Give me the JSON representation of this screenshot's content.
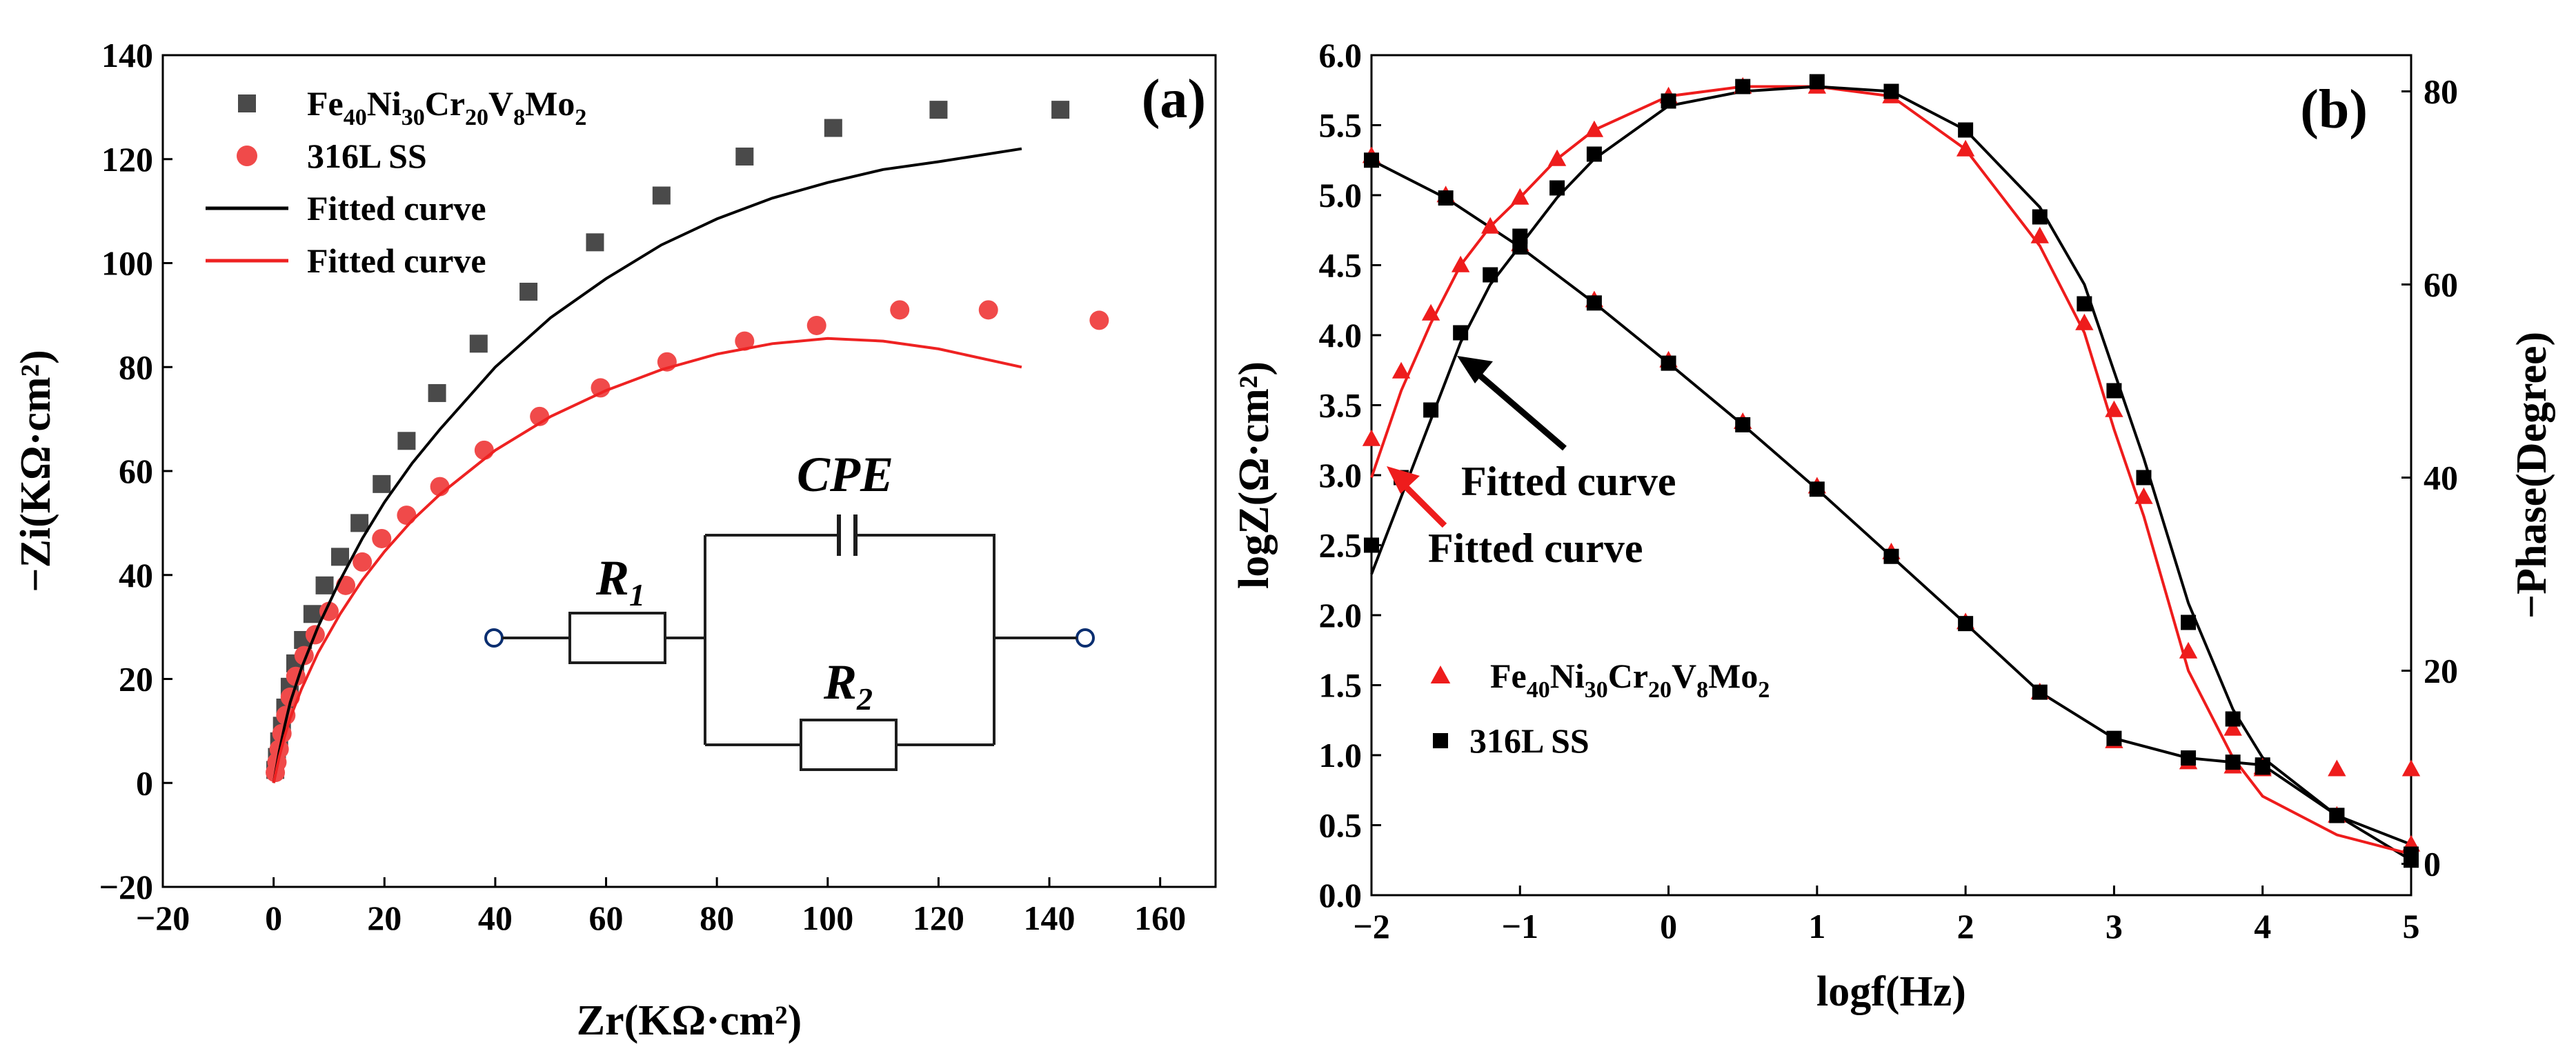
{
  "chart_data": [
    {
      "type": "scatter",
      "panel_label": "(a)",
      "xlabel": "Zr(KΩ·cm²)",
      "ylabel": "−Zi(KΩ·cm²)",
      "xlim": [
        -20,
        170
      ],
      "ylim": [
        -20,
        140
      ],
      "xticks": [
        "−20",
        "0",
        "20",
        "40",
        "60",
        "80",
        "100",
        "120",
        "140",
        "160"
      ],
      "yticks": [
        "−20",
        "0",
        "20",
        "40",
        "60",
        "80",
        "100",
        "120",
        "140"
      ],
      "legend_position": "top-left",
      "legend": [
        {
          "label": "Fe",
          "sub": [
            "40",
            "Ni",
            "30",
            "Cr",
            "20",
            "V",
            "8",
            "Mo",
            "2"
          ],
          "marker": "square",
          "color": "#4a4a4a"
        },
        {
          "label": "316L SS",
          "marker": "circle",
          "color": "#f04a4a"
        },
        {
          "label": "Fitted curve",
          "marker": "line",
          "color": "#000000"
        },
        {
          "label": "Fitted curve",
          "marker": "line",
          "color": "#ee2222"
        }
      ],
      "series": [
        {
          "name": "Fe40Ni30Cr20V8Mo2",
          "marker": "square",
          "color": "#4a4a4a",
          "x": [
            0.3,
            0.6,
            1.0,
            1.5,
            2.1,
            2.9,
            3.9,
            5.3,
            7.0,
            9.2,
            12,
            15.5,
            19.5,
            24,
            29.5,
            37,
            46,
            58,
            70,
            85,
            101,
            120,
            142
          ],
          "y": [
            2.5,
            5,
            8,
            11,
            14.5,
            18.5,
            23,
            27.5,
            32.5,
            38,
            43.5,
            50,
            57.5,
            65.8,
            75,
            84.5,
            94.5,
            104,
            113,
            120.5,
            126,
            129.5,
            129.5
          ]
        },
        {
          "name": "316L SS",
          "marker": "circle",
          "color": "#f04a4a",
          "x": [
            0.3,
            0.6,
            1.0,
            1.5,
            2.2,
            3.0,
            4.0,
            5.5,
            7.5,
            10,
            13,
            16,
            19.5,
            24,
            30,
            38,
            48,
            59,
            71,
            85,
            98,
            113,
            129,
            149
          ],
          "y": [
            2,
            4,
            6.5,
            9.5,
            13,
            16.5,
            20.5,
            24.5,
            28.5,
            33,
            38,
            42.5,
            47,
            51.5,
            57,
            64,
            70.5,
            76,
            81,
            85,
            88,
            91,
            91,
            89
          ]
        },
        {
          "name": "Fitted curve (Fe40Ni30Cr20V8Mo2)",
          "marker": "line",
          "color": "#000000",
          "x": [
            0,
            1,
            2,
            3,
            5,
            8,
            12,
            16,
            20,
            25,
            30,
            40,
            50,
            60,
            70,
            80,
            90,
            100,
            110,
            120,
            135
          ],
          "y": [
            0,
            6,
            11,
            15.5,
            22,
            30,
            39,
            47,
            54,
            61.5,
            68,
            80,
            89.5,
            97,
            103.5,
            108.5,
            112.5,
            115.5,
            118,
            119.5,
            122
          ]
        },
        {
          "name": "Fitted curve (316L SS)",
          "marker": "line",
          "color": "#ee2222",
          "x": [
            0,
            1,
            2,
            3,
            5,
            8,
            12,
            16,
            20,
            25,
            30,
            40,
            50,
            60,
            70,
            80,
            90,
            100,
            110,
            120,
            135
          ],
          "y": [
            0,
            5,
            9,
            12.5,
            18,
            25,
            32.5,
            39,
            44.5,
            50.5,
            55.5,
            64,
            70.5,
            75.5,
            79.5,
            82.5,
            84.5,
            85.5,
            85,
            83.5,
            80
          ]
        }
      ],
      "circuit": {
        "labels": [
          "CPE",
          "R",
          "1",
          "R",
          "2"
        ]
      }
    },
    {
      "type": "scatter",
      "panel_label": "(b)",
      "xlabel": "logf(Hz)",
      "ylabel": "logZ(Ω·cm²)",
      "y2label": "−Phase(Degree)",
      "xlim": [
        -2,
        5
      ],
      "ylim": [
        0,
        6
      ],
      "y2lim": [
        -3.25,
        83.75
      ],
      "xticks": [
        "−2",
        "−1",
        "0",
        "1",
        "2",
        "3",
        "4",
        "5"
      ],
      "yticks": [
        "0.0",
        "0.5",
        "1.0",
        "1.5",
        "2.0",
        "2.5",
        "3.0",
        "3.5",
        "4.0",
        "4.5",
        "5.0",
        "5.5",
        "6.0"
      ],
      "y2ticks": [
        "0",
        "20",
        "40",
        "60",
        "80"
      ],
      "legend_position": "bottom-left",
      "legend": [
        {
          "label": "Fe",
          "sub": [
            "40",
            "Ni",
            "30",
            "Cr",
            "20",
            "V",
            "8",
            "Mo",
            "2"
          ],
          "marker": "triangle",
          "color": "#ee1c1c"
        },
        {
          "label": "316L SS",
          "marker": "square",
          "color": "#000000"
        }
      ],
      "annotations": [
        "Fitted curve",
        "Fitted curve"
      ],
      "series": [
        {
          "name": "Fe40Ni30Cr20V8Mo2 |Z|",
          "marker": "triangle",
          "color": "#ee1c1c",
          "axis": "left",
          "x": [
            -2.0,
            -1.5,
            -1.0,
            -0.5,
            0.0,
            0.5,
            1.0,
            1.5,
            2.0,
            2.5,
            3.0,
            3.5,
            3.8,
            4.0,
            4.5,
            5.0
          ],
          "y": [
            5.28,
            5.0,
            4.65,
            4.25,
            3.82,
            3.38,
            2.92,
            2.45,
            1.95,
            1.45,
            1.1,
            0.95,
            0.92,
            0.9,
            0.9,
            0.9
          ]
        },
        {
          "name": "316L SS |Z|",
          "marker": "square",
          "color": "#000000",
          "axis": "left",
          "x": [
            -2.0,
            -1.5,
            -1.0,
            -0.5,
            0.0,
            0.5,
            1.0,
            1.5,
            2.0,
            2.5,
            3.0,
            3.5,
            3.8,
            4.0,
            4.5,
            5.0
          ],
          "y": [
            5.25,
            4.98,
            4.63,
            4.23,
            3.8,
            3.36,
            2.9,
            2.42,
            1.94,
            1.45,
            1.12,
            0.98,
            0.95,
            0.93,
            0.57,
            0.25
          ]
        },
        {
          "name": "Fe40Ni30Cr20V8Mo2 phase",
          "marker": "triangle",
          "color": "#ee1c1c",
          "axis": "right",
          "x": [
            -2.0,
            -1.8,
            -1.6,
            -1.4,
            -1.2,
            -1.0,
            -0.75,
            -0.5,
            0.0,
            0.5,
            1.0,
            1.5,
            2.0,
            2.5,
            2.8,
            3.0,
            3.2,
            3.5,
            3.8,
            4.0,
            4.5,
            5.0
          ],
          "y": [
            44,
            51,
            57,
            62,
            66,
            69,
            73,
            76,
            79.5,
            80.5,
            80.5,
            79.5,
            74,
            65,
            56,
            47,
            38,
            22,
            14,
            10,
            5,
            2
          ]
        },
        {
          "name": "316L SS phase",
          "marker": "square",
          "color": "#000000",
          "axis": "right",
          "x": [
            -2.0,
            -1.8,
            -1.6,
            -1.4,
            -1.2,
            -1.0,
            -0.75,
            -0.5,
            0.0,
            0.5,
            1.0,
            1.5,
            2.0,
            2.5,
            2.8,
            3.0,
            3.2,
            3.5,
            3.8,
            4.0,
            4.5,
            5.0
          ],
          "y": [
            33,
            40,
            47,
            55,
            61,
            65,
            70,
            73.5,
            79,
            80.5,
            81,
            80,
            76,
            67,
            58,
            49,
            40,
            25,
            15,
            10,
            5,
            1
          ]
        },
        {
          "name": "Fitted curve |Z|",
          "marker": "line",
          "color": "#000000",
          "axis": "left",
          "x": [
            -2.0,
            -1.5,
            -1.0,
            -0.5,
            0.0,
            0.5,
            1.0,
            1.5,
            2.0,
            2.5,
            3.0,
            3.5,
            3.8,
            4.0,
            4.5,
            5.0
          ],
          "y": [
            5.25,
            4.98,
            4.63,
            4.23,
            3.8,
            3.36,
            2.9,
            2.42,
            1.94,
            1.45,
            1.12,
            0.98,
            0.95,
            0.93,
            0.57,
            0.25
          ]
        },
        {
          "name": "Fitted curve phase (red)",
          "marker": "line",
          "color": "#ee1c1c",
          "axis": "right",
          "x": [
            -2.0,
            -1.8,
            -1.6,
            -1.4,
            -1.2,
            -1.0,
            -0.75,
            -0.5,
            0.0,
            0.5,
            1.0,
            1.5,
            2.0,
            2.5,
            2.8,
            3.0,
            3.2,
            3.5,
            3.8,
            4.0,
            4.5,
            5.0
          ],
          "y": [
            40,
            49,
            56,
            62,
            66,
            69,
            73,
            76,
            79.5,
            80.5,
            80.5,
            79.5,
            74,
            64,
            55,
            45,
            36,
            20,
            11,
            7,
            3,
            1
          ]
        },
        {
          "name": "Fitted curve phase (black)",
          "marker": "line",
          "color": "#000000",
          "axis": "right",
          "x": [
            -2.0,
            -1.8,
            -1.6,
            -1.4,
            -1.2,
            -1.0,
            -0.75,
            -0.5,
            0.0,
            0.5,
            1.0,
            1.5,
            2.0,
            2.5,
            2.8,
            3.0,
            3.2,
            3.5,
            3.8,
            4.0,
            4.5,
            5.0
          ],
          "y": [
            30,
            38,
            46,
            54,
            60,
            64,
            69,
            73,
            78.5,
            80,
            80.5,
            80,
            76,
            68,
            60,
            51,
            42,
            27,
            16,
            11,
            5,
            2
          ]
        }
      ]
    }
  ]
}
